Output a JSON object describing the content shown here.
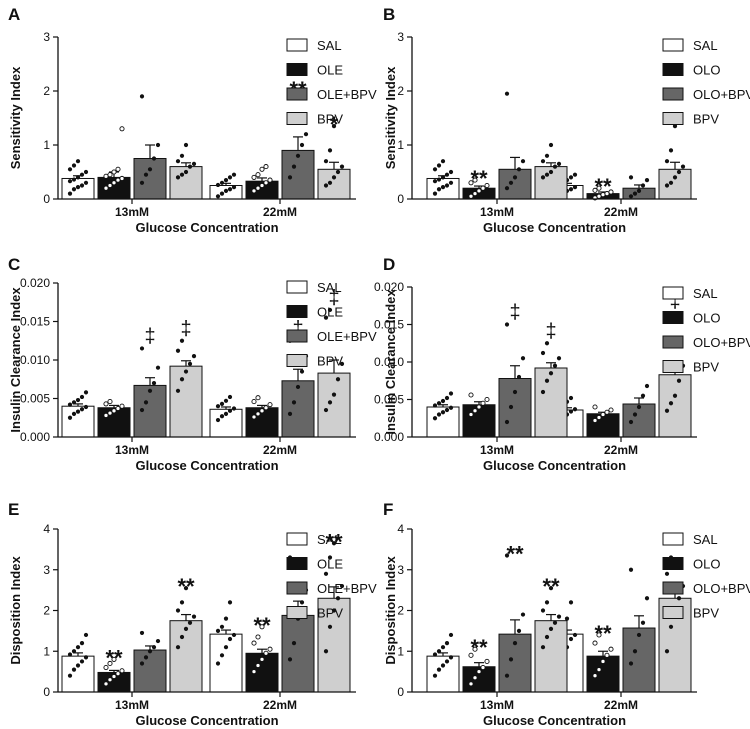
{
  "chart_data": [
    {
      "panel_label": "A",
      "type": "bar",
      "title": "",
      "xlabel": "Glucose Concentration",
      "ylabel": "Sensitivity Index",
      "ylim": [
        0,
        3
      ],
      "yticks": [
        "0",
        "1",
        "2",
        "3"
      ],
      "categories": [
        "13mM",
        "22mM"
      ],
      "legend": [
        "SAL",
        "OLE",
        "OLE+BPV",
        "BPV"
      ],
      "series": [
        {
          "name": "SAL",
          "values": [
            0.38,
            0.25
          ],
          "sem": [
            0.05,
            0.04
          ],
          "points": [
            [
              0.1,
              0.18,
              0.22,
              0.25,
              0.3,
              0.33,
              0.36,
              0.4,
              0.45,
              0.5,
              0.55,
              0.62,
              0.7
            ],
            [
              0.05,
              0.1,
              0.15,
              0.18,
              0.22,
              0.26,
              0.3,
              0.35,
              0.4,
              0.45
            ]
          ],
          "annotations": [
            "",
            ""
          ]
        },
        {
          "name": "OLE",
          "values": [
            0.4,
            0.33
          ],
          "sem": [
            0.1,
            0.06
          ],
          "points": [
            [
              0.2,
              0.25,
              0.3,
              0.35,
              0.38,
              0.42,
              0.45,
              0.5,
              0.55,
              1.3
            ],
            [
              0.15,
              0.2,
              0.25,
              0.3,
              0.35,
              0.4,
              0.45,
              0.55,
              0.6
            ]
          ],
          "annotations": [
            "",
            ""
          ]
        },
        {
          "name": "OLE+BPV",
          "values": [
            0.75,
            0.9
          ],
          "sem": [
            0.25,
            0.25
          ],
          "points": [
            [
              0.3,
              0.45,
              0.55,
              0.75,
              1.0,
              1.9
            ],
            [
              0.4,
              0.6,
              0.8,
              1.0,
              1.2,
              2.0
            ]
          ],
          "annotations": [
            "",
            "**"
          ]
        },
        {
          "name": "BPV",
          "values": [
            0.6,
            0.55
          ],
          "sem": [
            0.07,
            0.13
          ],
          "points": [
            [
              0.4,
              0.45,
              0.5,
              0.6,
              0.65,
              0.7,
              0.8,
              1.0
            ],
            [
              0.25,
              0.3,
              0.4,
              0.5,
              0.6,
              0.7,
              0.9,
              1.35
            ]
          ],
          "annotations": [
            "",
            "*"
          ]
        }
      ]
    },
    {
      "panel_label": "B",
      "type": "bar",
      "title": "",
      "xlabel": "Glucose Concentration",
      "ylabel": "Sensitivity Index",
      "ylim": [
        0,
        3
      ],
      "yticks": [
        "0",
        "1",
        "2",
        "3"
      ],
      "categories": [
        "13mM",
        "22mM"
      ],
      "legend": [
        "SAL",
        "OLO",
        "OLO+BPV",
        "BPV"
      ],
      "series": [
        {
          "name": "SAL",
          "values": [
            0.38,
            0.25
          ],
          "sem": [
            0.05,
            0.04
          ],
          "points": [
            [
              0.1,
              0.18,
              0.22,
              0.25,
              0.3,
              0.33,
              0.36,
              0.4,
              0.45,
              0.5,
              0.55,
              0.62,
              0.7
            ],
            [
              0.05,
              0.1,
              0.15,
              0.18,
              0.22,
              0.26,
              0.3,
              0.35,
              0.4,
              0.45
            ]
          ],
          "annotations": [
            "",
            ""
          ]
        },
        {
          "name": "OLO",
          "values": [
            0.2,
            0.1
          ],
          "sem": [
            0.04,
            0.03
          ],
          "points": [
            [
              0.05,
              0.1,
              0.15,
              0.2,
              0.25,
              0.3,
              0.35
            ],
            [
              0.02,
              0.05,
              0.08,
              0.1,
              0.13,
              0.16,
              0.2
            ]
          ],
          "annotations": [
            "**",
            "**"
          ]
        },
        {
          "name": "OLO+BPV",
          "values": [
            0.55,
            0.2
          ],
          "sem": [
            0.22,
            0.06
          ],
          "points": [
            [
              0.2,
              0.3,
              0.4,
              0.55,
              0.7,
              1.95
            ],
            [
              0.05,
              0.1,
              0.15,
              0.25,
              0.35,
              0.4
            ]
          ],
          "annotations": [
            "",
            ""
          ]
        },
        {
          "name": "BPV",
          "values": [
            0.6,
            0.55
          ],
          "sem": [
            0.07,
            0.13
          ],
          "points": [
            [
              0.4,
              0.45,
              0.5,
              0.6,
              0.65,
              0.7,
              0.8,
              1.0
            ],
            [
              0.25,
              0.3,
              0.4,
              0.5,
              0.6,
              0.7,
              0.9,
              1.35
            ]
          ],
          "annotations": [
            "",
            "*"
          ]
        }
      ]
    },
    {
      "panel_label": "C",
      "type": "bar",
      "title": "",
      "xlabel": "Glucose Concentration",
      "ylabel": "Insulin Clearance Index",
      "ylim": [
        0,
        0.02
      ],
      "yticks": [
        "0.000",
        "0.005",
        "0.010",
        "0.015",
        "0.020"
      ],
      "categories": [
        "13mM",
        "22mM"
      ],
      "legend": [
        "SAL",
        "OLE",
        "OLE+BPV",
        "BPV"
      ],
      "series": [
        {
          "name": "SAL",
          "values": [
            0.004,
            0.0036
          ],
          "sem": [
            0.0003,
            0.0003
          ],
          "points": [
            [
              0.0025,
              0.003,
              0.0033,
              0.0036,
              0.0039,
              0.0042,
              0.0045,
              0.0048,
              0.0052,
              0.0058
            ],
            [
              0.0022,
              0.0027,
              0.003,
              0.0034,
              0.0037,
              0.004,
              0.0043,
              0.0047,
              0.0052
            ]
          ],
          "annotations": [
            "",
            ""
          ]
        },
        {
          "name": "OLE",
          "values": [
            0.0038,
            0.0038
          ],
          "sem": [
            0.0003,
            0.0003
          ],
          "points": [
            [
              0.0028,
              0.0031,
              0.0034,
              0.0037,
              0.004,
              0.0043,
              0.0046
            ],
            [
              0.0026,
              0.003,
              0.0034,
              0.0038,
              0.0042,
              0.0046,
              0.0051
            ]
          ],
          "annotations": [
            "",
            ""
          ]
        },
        {
          "name": "OLE+BPV",
          "values": [
            0.0067,
            0.0073
          ],
          "sem": [
            0.001,
            0.0015
          ],
          "points": [
            [
              0.0035,
              0.0045,
              0.006,
              0.007,
              0.009,
              0.0115
            ],
            [
              0.003,
              0.0045,
              0.0065,
              0.0085,
              0.0105,
              0.0125
            ]
          ],
          "annotations": [
            "‡",
            "‡"
          ]
        },
        {
          "name": "BPV",
          "values": [
            0.0092,
            0.0083
          ],
          "sem": [
            0.0007,
            0.0017
          ],
          "points": [
            [
              0.006,
              0.0075,
              0.0085,
              0.0095,
              0.0105,
              0.0112,
              0.0125
            ],
            [
              0.0035,
              0.0045,
              0.0055,
              0.0075,
              0.0095,
              0.0155,
              0.0165
            ]
          ],
          "annotations": [
            "‡",
            "‡"
          ]
        }
      ]
    },
    {
      "panel_label": "D",
      "type": "bar",
      "title": "",
      "xlabel": "Glucose Concentration",
      "ylabel": "Insulin Clearance Index",
      "ylim": [
        0,
        0.02
      ],
      "yticks": [
        "0.000",
        "0.005",
        "0.010",
        "0.015",
        "0.020"
      ],
      "categories": [
        "13mM",
        "22mM"
      ],
      "legend": [
        "SAL",
        "OLO",
        "OLO+BPV",
        "BPV"
      ],
      "series": [
        {
          "name": "SAL",
          "values": [
            0.004,
            0.0036
          ],
          "sem": [
            0.0003,
            0.0003
          ],
          "points": [
            [
              0.0025,
              0.003,
              0.0033,
              0.0036,
              0.0039,
              0.0042,
              0.0045,
              0.0048,
              0.0052,
              0.0058
            ],
            [
              0.0022,
              0.0027,
              0.003,
              0.0034,
              0.0037,
              0.004,
              0.0043,
              0.0047,
              0.0052
            ]
          ],
          "annotations": [
            "",
            ""
          ]
        },
        {
          "name": "OLO",
          "values": [
            0.0043,
            0.0031
          ],
          "sem": [
            0.0004,
            0.0002
          ],
          "points": [
            [
              0.003,
              0.0035,
              0.004,
              0.0045,
              0.005,
              0.0056
            ],
            [
              0.0022,
              0.0026,
              0.003,
              0.0033,
              0.0036,
              0.004
            ]
          ],
          "annotations": [
            "",
            ""
          ]
        },
        {
          "name": "OLO+BPV",
          "values": [
            0.0078,
            0.0044
          ],
          "sem": [
            0.0017,
            0.0008
          ],
          "points": [
            [
              0.002,
              0.004,
              0.006,
              0.008,
              0.0105,
              0.015
            ],
            [
              0.002,
              0.003,
              0.004,
              0.0055,
              0.0068
            ]
          ],
          "annotations": [
            "‡",
            ""
          ]
        },
        {
          "name": "BPV",
          "values": [
            0.0092,
            0.0083
          ],
          "sem": [
            0.0007,
            0.0017
          ],
          "points": [
            [
              0.006,
              0.0075,
              0.0085,
              0.0095,
              0.0105,
              0.0112,
              0.0125
            ],
            [
              0.0035,
              0.0045,
              0.0055,
              0.0075,
              0.0095,
              0.0155,
              0.0165
            ]
          ],
          "annotations": [
            "‡",
            "‡"
          ]
        }
      ]
    },
    {
      "panel_label": "E",
      "type": "bar",
      "title": "",
      "xlabel": "Glucose Concentration",
      "ylabel": "Disposition Index",
      "ylim": [
        0,
        4
      ],
      "yticks": [
        "0",
        "1",
        "2",
        "3",
        "4"
      ],
      "categories": [
        "13mM",
        "22mM"
      ],
      "legend": [
        "SAL",
        "OLE",
        "OLE+BPV",
        "BPV"
      ],
      "series": [
        {
          "name": "SAL",
          "values": [
            0.88,
            1.42
          ],
          "sem": [
            0.08,
            0.1
          ],
          "points": [
            [
              0.4,
              0.55,
              0.65,
              0.75,
              0.85,
              0.92,
              1.0,
              1.1,
              1.2,
              1.4
            ],
            [
              0.7,
              0.9,
              1.1,
              1.3,
              1.4,
              1.5,
              1.6,
              1.8,
              2.2
            ]
          ],
          "annotations": [
            "",
            ""
          ]
        },
        {
          "name": "OLE",
          "values": [
            0.48,
            0.95
          ],
          "sem": [
            0.05,
            0.1
          ],
          "points": [
            [
              0.2,
              0.3,
              0.38,
              0.45,
              0.52,
              0.6,
              0.7,
              0.8
            ],
            [
              0.5,
              0.65,
              0.8,
              0.95,
              1.05,
              1.2,
              1.35,
              1.6
            ]
          ],
          "annotations": [
            "**",
            "**"
          ]
        },
        {
          "name": "OLE+BPV",
          "values": [
            1.03,
            1.88
          ],
          "sem": [
            0.1,
            0.35
          ],
          "points": [
            [
              0.7,
              0.85,
              1.0,
              1.1,
              1.25,
              1.45
            ],
            [
              0.8,
              1.2,
              1.8,
              2.2,
              2.5,
              3.3
            ]
          ],
          "annotations": [
            "",
            ""
          ]
        },
        {
          "name": "BPV",
          "values": [
            1.75,
            2.3
          ],
          "sem": [
            0.15,
            0.28
          ],
          "points": [
            [
              1.1,
              1.35,
              1.55,
              1.7,
              1.85,
              2.0,
              2.2,
              2.55
            ],
            [
              1.0,
              1.6,
              2.0,
              2.3,
              2.6,
              2.9,
              3.3,
              3.65
            ]
          ],
          "annotations": [
            "**",
            "**"
          ]
        }
      ]
    },
    {
      "panel_label": "F",
      "type": "bar",
      "title": "",
      "xlabel": "Glucose Concentration",
      "ylabel": "Disposition Index",
      "ylim": [
        0,
        4
      ],
      "yticks": [
        "0",
        "1",
        "2",
        "3",
        "4"
      ],
      "categories": [
        "13mM",
        "22mM"
      ],
      "legend": [
        "SAL",
        "OLO",
        "OLO+BPV",
        "BPV"
      ],
      "series": [
        {
          "name": "SAL",
          "values": [
            0.88,
            1.42
          ],
          "sem": [
            0.08,
            0.1
          ],
          "points": [
            [
              0.4,
              0.55,
              0.65,
              0.75,
              0.85,
              0.92,
              1.0,
              1.1,
              1.2,
              1.4
            ],
            [
              0.7,
              0.9,
              1.1,
              1.3,
              1.4,
              1.5,
              1.6,
              1.8,
              2.2
            ]
          ],
          "annotations": [
            "",
            ""
          ]
        },
        {
          "name": "OLO",
          "values": [
            0.62,
            0.88
          ],
          "sem": [
            0.1,
            0.12
          ],
          "points": [
            [
              0.2,
              0.35,
              0.5,
              0.6,
              0.75,
              0.9,
              1.05
            ],
            [
              0.4,
              0.55,
              0.75,
              0.9,
              1.05,
              1.2,
              1.4
            ]
          ],
          "annotations": [
            "**",
            "**"
          ]
        },
        {
          "name": "OLO+BPV",
          "values": [
            1.42,
            1.57
          ],
          "sem": [
            0.35,
            0.3
          ],
          "points": [
            [
              0.4,
              0.8,
              1.2,
              1.5,
              1.9,
              3.35
            ],
            [
              0.7,
              1.0,
              1.4,
              1.7,
              2.3,
              3.0
            ]
          ],
          "annotations": [
            "**",
            ""
          ]
        },
        {
          "name": "BPV",
          "values": [
            1.75,
            2.3
          ],
          "sem": [
            0.15,
            0.28
          ],
          "points": [
            [
              1.1,
              1.35,
              1.55,
              1.7,
              1.85,
              2.0,
              2.2,
              2.55
            ],
            [
              1.0,
              1.6,
              2.0,
              2.3,
              2.6,
              2.9,
              3.3,
              3.65
            ]
          ],
          "annotations": [
            "**",
            "**"
          ]
        }
      ]
    }
  ],
  "colors": {
    "SAL": "#ffffff",
    "OLE": "#111111",
    "OLO": "#111111",
    "OLE+BPV": "#666666",
    "OLO+BPV": "#666666",
    "BPV": "#cfcfcf",
    "axis": "#111111"
  }
}
